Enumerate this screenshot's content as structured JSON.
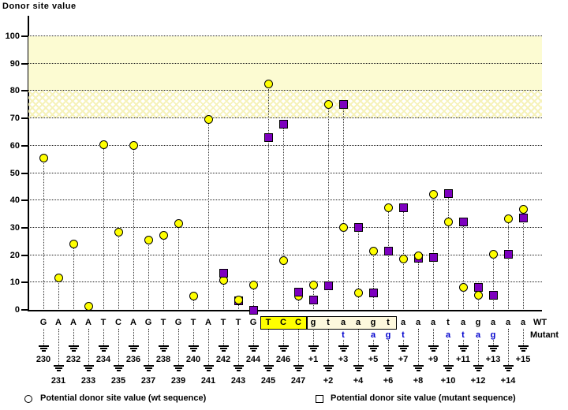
{
  "title": "Donor site value",
  "row_labels": {
    "wt": "WT",
    "mutant": "Mutant"
  },
  "legend": [
    {
      "marker": "circle",
      "label": "Potential donor site value (wt sequence)"
    },
    {
      "marker": "square",
      "label": "Potential donor site value (mutant sequence)"
    }
  ],
  "colors": {
    "wt_marker": "#ffff00",
    "mut_marker": "#7d00bf",
    "mutant_text": "#0000cc",
    "band_solid": "#fcfbd2",
    "exon_box_bg": "#ffff00",
    "intron_box_bg": "#fdf8dd"
  },
  "axis": {
    "y_ticks": [
      0,
      10,
      20,
      30,
      40,
      50,
      60,
      70,
      80,
      90,
      100
    ],
    "bands": [
      {
        "from": 80,
        "to": 100,
        "style": "solid"
      },
      {
        "from": 70,
        "to": 80,
        "style": "hatch"
      }
    ]
  },
  "chart_data": {
    "type": "scatter",
    "title": "Donor site value",
    "ylabel": "Donor site value",
    "ylim": [
      0,
      100
    ],
    "grid": "horizontal-dotted",
    "legend_position": "bottom",
    "series_names": [
      "wt sequence",
      "mutant sequence"
    ],
    "highlight": {
      "exon_letters": "TCC",
      "intron_letters": "gtaagt",
      "exon_cols": [
        16,
        18
      ],
      "intron_cols": [
        19,
        24
      ]
    },
    "columns": [
      {
        "pos": "230",
        "wt_letter": "G",
        "wt": 55.5,
        "mut": null,
        "mut_letter": null
      },
      {
        "pos": "231",
        "wt_letter": "A",
        "wt": 11.7,
        "mut": null,
        "mut_letter": null
      },
      {
        "pos": "232",
        "wt_letter": "A",
        "wt": 24.2,
        "mut": null,
        "mut_letter": null
      },
      {
        "pos": "233",
        "wt_letter": "A",
        "wt": 1.2,
        "mut": null,
        "mut_letter": null
      },
      {
        "pos": "234",
        "wt_letter": "T",
        "wt": 60.4,
        "mut": null,
        "mut_letter": null
      },
      {
        "pos": "235",
        "wt_letter": "C",
        "wt": 28.5,
        "mut": null,
        "mut_letter": null
      },
      {
        "pos": "236",
        "wt_letter": "A",
        "wt": 60.0,
        "mut": null,
        "mut_letter": null
      },
      {
        "pos": "237",
        "wt_letter": "G",
        "wt": 25.4,
        "mut": null,
        "mut_letter": null
      },
      {
        "pos": "238",
        "wt_letter": "T",
        "wt": 27.3,
        "mut": null,
        "mut_letter": null
      },
      {
        "pos": "239",
        "wt_letter": "G",
        "wt": 31.5,
        "mut": null,
        "mut_letter": null
      },
      {
        "pos": "240",
        "wt_letter": "T",
        "wt": 5.0,
        "mut": null,
        "mut_letter": null
      },
      {
        "pos": "241",
        "wt_letter": "A",
        "wt": 69.5,
        "mut": null,
        "mut_letter": null
      },
      {
        "pos": "242",
        "wt_letter": "T",
        "wt": 10.9,
        "mut": 13.3,
        "mut_letter": null
      },
      {
        "pos": "243",
        "wt_letter": "T",
        "wt": 3.7,
        "mut": 3.3,
        "mut_letter": null
      },
      {
        "pos": "244",
        "wt_letter": "G",
        "wt": 9.2,
        "mut": 0.0,
        "mut_letter": null
      },
      {
        "pos": "245",
        "wt_letter": "T",
        "wt": 82.5,
        "mut": 63.0,
        "mut_letter": null
      },
      {
        "pos": "246",
        "wt_letter": "C",
        "wt": 17.9,
        "mut": 68.0,
        "mut_letter": null
      },
      {
        "pos": "247",
        "wt_letter": "C",
        "wt": 4.9,
        "mut": 6.6,
        "mut_letter": null
      },
      {
        "pos": "+1",
        "wt_letter": "g",
        "wt": 9.0,
        "mut": 3.7,
        "mut_letter": null
      },
      {
        "pos": "+2",
        "wt_letter": "t",
        "wt": 75.0,
        "mut": 8.7,
        "mut_letter": null
      },
      {
        "pos": "+3",
        "wt_letter": "a",
        "wt": 30.2,
        "mut": 75.1,
        "mut_letter": "t"
      },
      {
        "pos": "+4",
        "wt_letter": "a",
        "wt": 6.1,
        "mut": 30.2,
        "mut_letter": null
      },
      {
        "pos": "+5",
        "wt_letter": "g",
        "wt": 21.6,
        "mut": 6.1,
        "mut_letter": "a"
      },
      {
        "pos": "+6",
        "wt_letter": "t",
        "wt": 37.4,
        "mut": 21.6,
        "mut_letter": "g"
      },
      {
        "pos": "+7",
        "wt_letter": "a",
        "wt": 18.7,
        "mut": 37.4,
        "mut_letter": "t"
      },
      {
        "pos": "+8",
        "wt_letter": "a",
        "wt": 19.8,
        "mut": 18.9,
        "mut_letter": null
      },
      {
        "pos": "+9",
        "wt_letter": "a",
        "wt": 42.2,
        "mut": 19.1,
        "mut_letter": null
      },
      {
        "pos": "+10",
        "wt_letter": "t",
        "wt": 32.1,
        "mut": 42.4,
        "mut_letter": "a"
      },
      {
        "pos": "+11",
        "wt_letter": "a",
        "wt": 8.1,
        "mut": 32.1,
        "mut_letter": "t"
      },
      {
        "pos": "+12",
        "wt_letter": "g",
        "wt": 5.4,
        "mut": 8.1,
        "mut_letter": "a"
      },
      {
        "pos": "+13",
        "wt_letter": "a",
        "wt": 20.3,
        "mut": 5.2,
        "mut_letter": "g"
      },
      {
        "pos": "+14",
        "wt_letter": "a",
        "wt": 33.2,
        "mut": 20.3,
        "mut_letter": null
      },
      {
        "pos": "+15",
        "wt_letter": "a",
        "wt": 36.6,
        "mut": 33.5,
        "mut_letter": null
      }
    ]
  }
}
